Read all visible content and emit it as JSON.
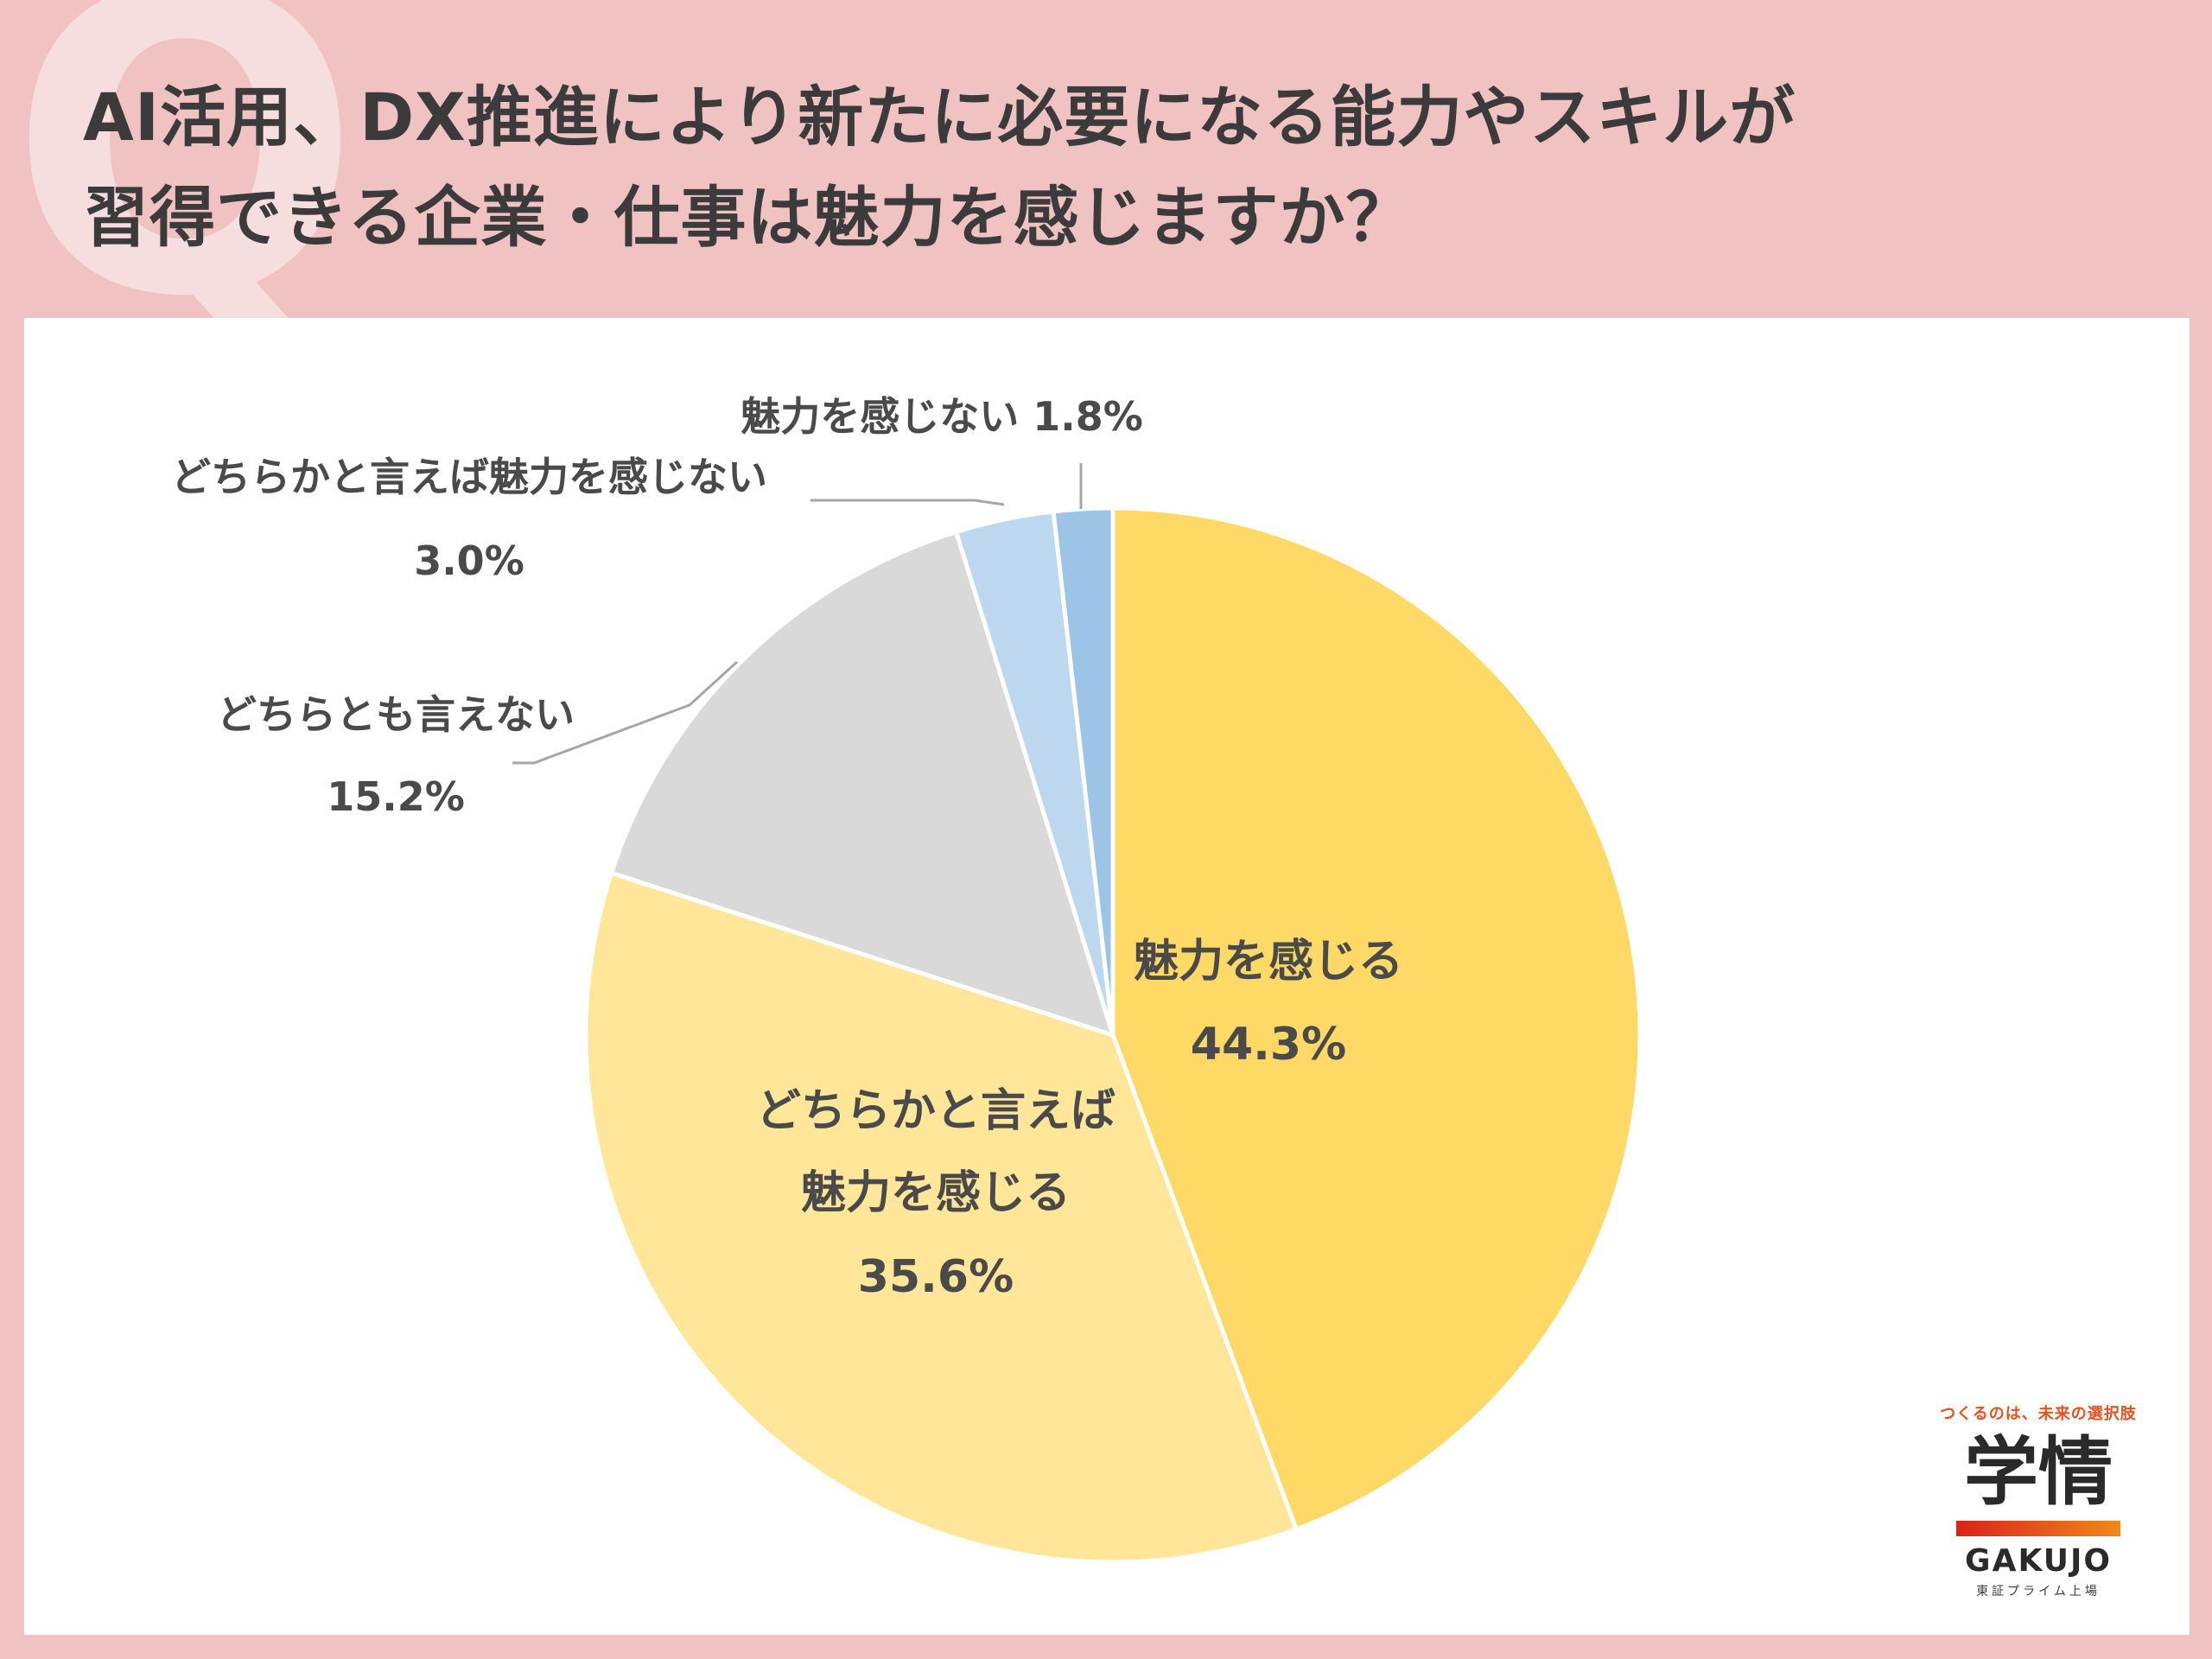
{
  "header": {
    "q_mark": "Q",
    "title_line1": "AI活用、DX推進により新たに必要になる能力やスキルが",
    "title_line2": "習得できる企業・仕事は魅力を感じますか？"
  },
  "chart_data": {
    "type": "pie",
    "title": "",
    "unit": "%",
    "start_angle_deg": 0,
    "direction": "clockwise",
    "slices": [
      {
        "label": "魅力を感じる",
        "label_lines": [
          "魅力を感じる"
        ],
        "value": 44.3,
        "value_label": "44.3%",
        "color": "#ffd966"
      },
      {
        "label": "どちらかと言えば魅力を感じる",
        "label_lines": [
          "どちらかと言えば",
          "魅力を感じる"
        ],
        "value": 35.6,
        "value_label": "35.6%",
        "color": "#ffe699"
      },
      {
        "label": "どちらとも言えない",
        "label_lines": [
          "どちらとも言えない"
        ],
        "value": 15.2,
        "value_label": "15.2%",
        "color": "#d9d9d9"
      },
      {
        "label": "どちらかと言えば魅力を感じない",
        "label_lines": [
          "どちらかと言えば魅力を感じない"
        ],
        "value": 3.0,
        "value_label": "3.0%",
        "color": "#bdd7ee"
      },
      {
        "label": "魅力を感じない",
        "label_lines": [
          "魅力を感じない"
        ],
        "value": 1.8,
        "value_label": "1.8%",
        "color": "#9dc3e6"
      }
    ]
  },
  "logo": {
    "tagline": "つくるのは、未来の選択肢",
    "kanji": "学情",
    "name": "GAKUJO",
    "sub": "東証プライム上場"
  }
}
